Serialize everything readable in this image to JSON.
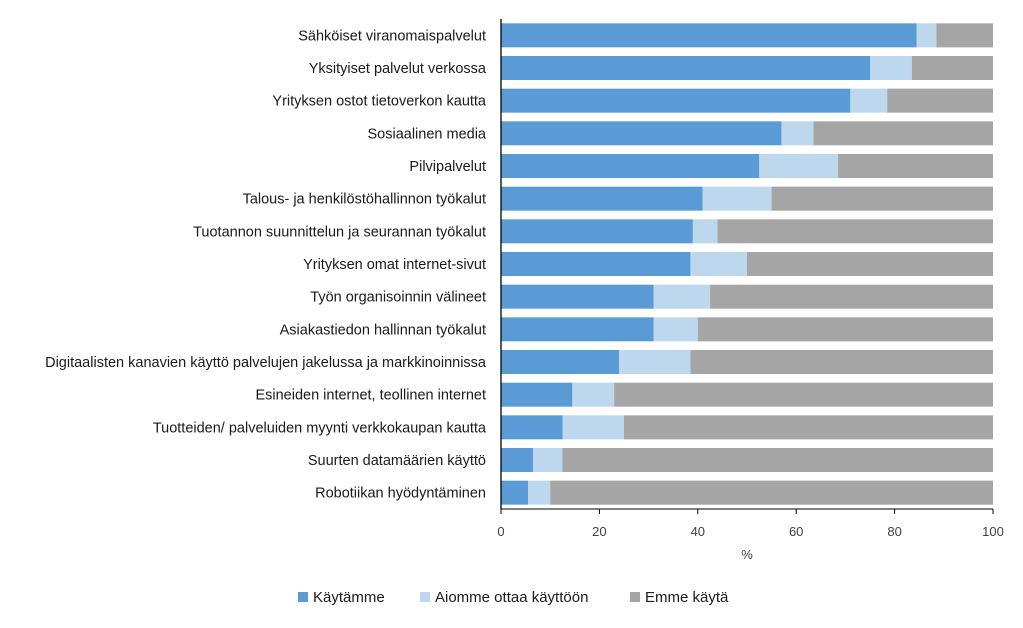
{
  "chart_data": {
    "type": "bar",
    "orientation": "horizontal",
    "stacked": true,
    "title": "",
    "xlabel": "%",
    "ylabel": "",
    "xlim": [
      0,
      100
    ],
    "xticks": [
      0,
      20,
      40,
      60,
      80,
      100
    ],
    "grid": false,
    "legend_position": "bottom",
    "categories": [
      "Sähköiset viranomaispalvelut",
      "Yksityiset palvelut verkossa",
      "Yrityksen ostot tietoverkon kautta",
      "Sosiaalinen media",
      "Pilvipalvelut",
      "Talous- ja henkilöstöhallinnon työkalut",
      "Tuotannon suunnittelun ja seurannan työkalut",
      "Yrityksen omat internet-sivut",
      "Työn organisoinnin välineet",
      "Asiakastiedon hallinnan työkalut",
      "Digitaalisten kanavien käyttö palvelujen jakelussa ja markkinoinnissa",
      "Esineiden internet, teollinen internet",
      "Tuotteiden/ palveluiden myynti verkkokaupan kautta",
      "Suurten datamäärien käyttö",
      "Robotiikan hyödyntäminen"
    ],
    "series": [
      {
        "name": "Käytämme",
        "color": "#5b9bd5",
        "values": [
          84.5,
          75,
          71,
          57,
          52.5,
          41,
          39,
          38.5,
          31,
          31,
          24,
          14.5,
          12.5,
          6.5,
          5.5
        ]
      },
      {
        "name": "Aiomme ottaa käyttöön",
        "color": "#bdd7ee",
        "values": [
          4,
          8.5,
          7.5,
          6.5,
          16,
          14,
          5,
          11.5,
          11.5,
          9,
          14.5,
          8.5,
          12.5,
          6,
          4.5
        ]
      },
      {
        "name": "Emme käytä",
        "color": "#a5a5a5",
        "values": [
          11.5,
          16.5,
          21.5,
          36.5,
          31.5,
          45,
          56,
          50,
          57.5,
          60,
          61.5,
          77,
          75,
          87.5,
          90
        ]
      }
    ]
  }
}
